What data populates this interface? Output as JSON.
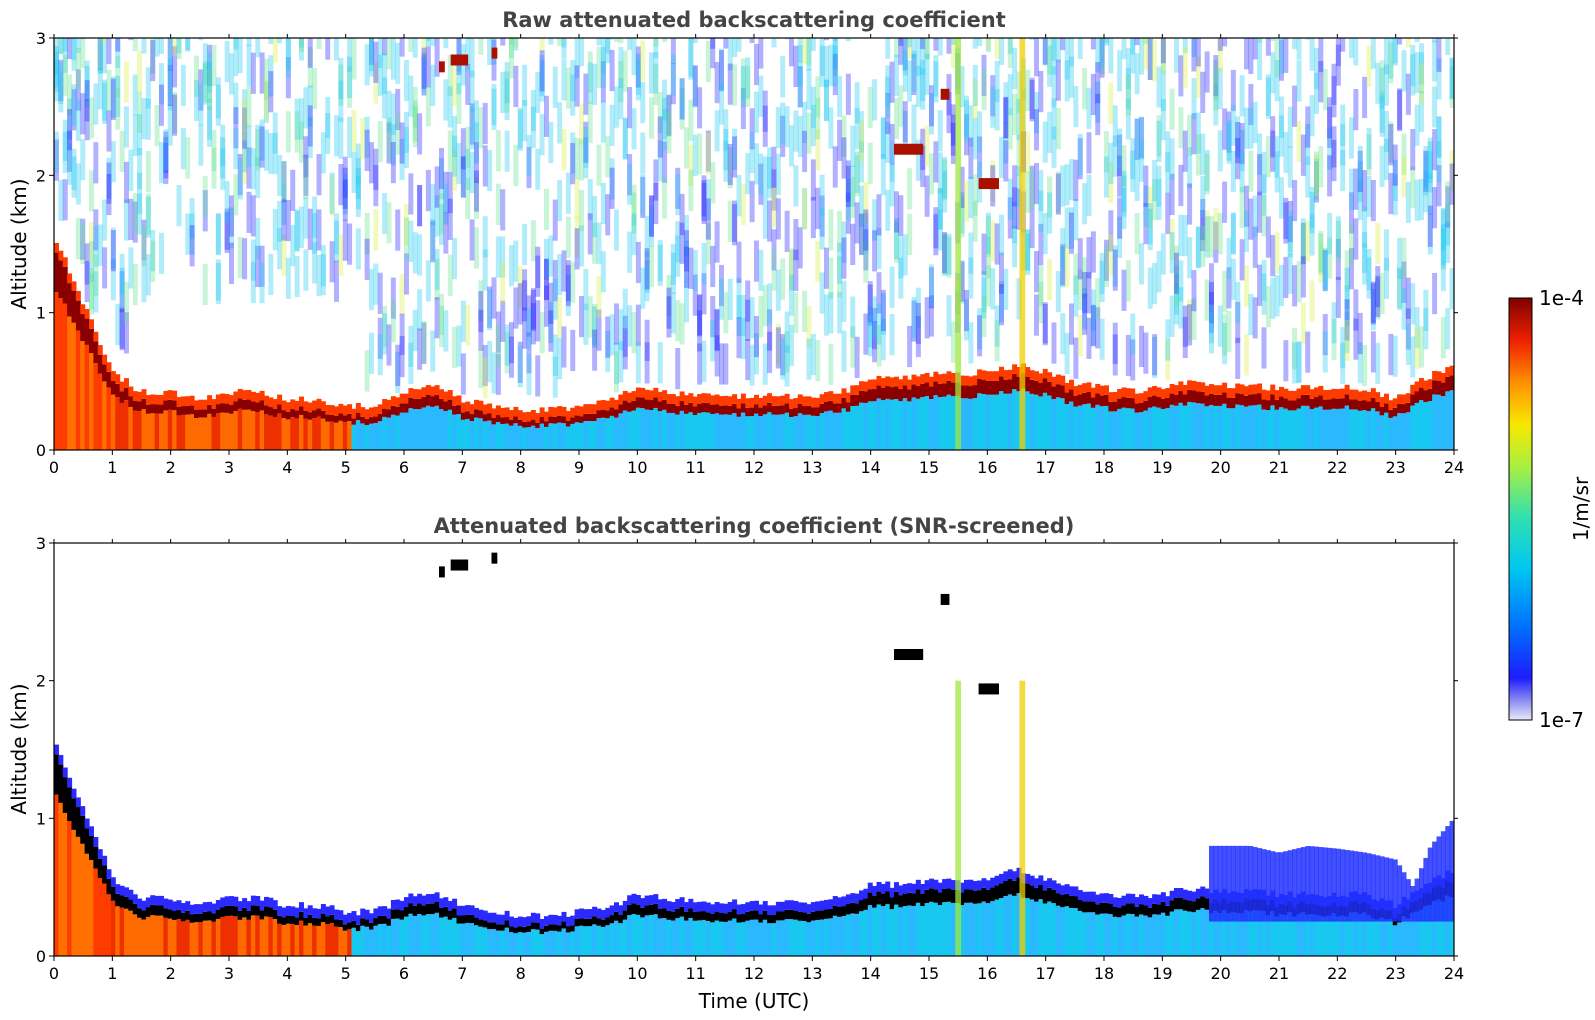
{
  "chart_data": [
    {
      "type": "heatmap",
      "title": "Raw attenuated backscattering coefficient",
      "xlabel": "",
      "ylabel": "Altitude (km)",
      "xlim": [
        0,
        24
      ],
      "ylim": [
        0,
        3
      ],
      "x_ticks": [
        0,
        1,
        2,
        3,
        4,
        5,
        6,
        7,
        8,
        9,
        10,
        11,
        12,
        13,
        14,
        15,
        16,
        17,
        18,
        19,
        20,
        21,
        22,
        23,
        24
      ],
      "y_ticks": [
        0,
        1,
        2,
        3
      ],
      "boundary_layer_top_km": {
        "time": [
          0,
          0.5,
          1,
          1.5,
          2,
          2.5,
          3,
          3.5,
          4,
          4.5,
          5,
          5.5,
          6,
          6.5,
          7,
          7.5,
          8,
          8.5,
          9,
          9.5,
          10,
          10.5,
          11,
          11.5,
          12,
          12.5,
          13,
          13.5,
          14,
          14.5,
          15,
          15.5,
          16,
          16.5,
          17,
          17.5,
          18,
          18.5,
          19,
          19.5,
          20,
          20.5,
          21,
          21.5,
          22,
          22.5,
          23,
          23.5,
          24
        ],
        "value": [
          1.5,
          1.0,
          0.5,
          0.35,
          0.35,
          0.3,
          0.35,
          0.35,
          0.3,
          0.3,
          0.25,
          0.25,
          0.35,
          0.4,
          0.3,
          0.25,
          0.22,
          0.22,
          0.25,
          0.28,
          0.38,
          0.35,
          0.32,
          0.32,
          0.32,
          0.32,
          0.32,
          0.35,
          0.45,
          0.45,
          0.48,
          0.48,
          0.5,
          0.55,
          0.5,
          0.42,
          0.38,
          0.36,
          0.38,
          0.42,
          0.4,
          0.4,
          0.38,
          0.38,
          0.38,
          0.38,
          0.3,
          0.45,
          0.55
        ]
      },
      "elevated_layers": [
        {
          "time_start": 6.6,
          "time_end": 6.7,
          "altitude_km": 2.75
        },
        {
          "time_start": 6.8,
          "time_end": 7.1,
          "altitude_km": 2.8
        },
        {
          "time_start": 7.5,
          "time_end": 7.6,
          "altitude_km": 2.85
        },
        {
          "time_start": 14.4,
          "time_end": 14.9,
          "altitude_km": 2.15
        },
        {
          "time_start": 15.2,
          "time_end": 15.35,
          "altitude_km": 2.55
        },
        {
          "time_start": 15.85,
          "time_end": 16.2,
          "altitude_km": 1.9
        }
      ],
      "noise_free_window": {
        "time_start": 1.3,
        "time_end": 5.3,
        "altitude_max_km": 1.05
      }
    },
    {
      "type": "heatmap",
      "title": "Attenuated backscattering coefficient (SNR-screened)",
      "xlabel": "Time (UTC)",
      "ylabel": "Altitude (km)",
      "xlim": [
        0,
        24
      ],
      "ylim": [
        0,
        3
      ],
      "x_ticks": [
        0,
        1,
        2,
        3,
        4,
        5,
        6,
        7,
        8,
        9,
        10,
        11,
        12,
        13,
        14,
        15,
        16,
        17,
        18,
        19,
        20,
        21,
        22,
        23,
        24
      ],
      "y_ticks": [
        0,
        1,
        2,
        3
      ],
      "blue_layer_top_km": {
        "time": [
          19.8,
          20.5,
          21.0,
          21.5,
          22.0,
          22.5,
          23.0,
          23.3,
          23.6,
          24.0
        ],
        "value": [
          0.8,
          0.8,
          0.75,
          0.8,
          0.78,
          0.75,
          0.7,
          0.5,
          0.8,
          1.0
        ]
      }
    }
  ],
  "colorbar": {
    "label": "1/m/sr",
    "tick_max": "1e-4",
    "tick_min": "1e-7",
    "colors": [
      "#e8e8f8",
      "#2828ff",
      "#0080ff",
      "#00d8f0",
      "#40e090",
      "#c8f040",
      "#f8e800",
      "#ff8800",
      "#ee2000",
      "#800000"
    ]
  }
}
